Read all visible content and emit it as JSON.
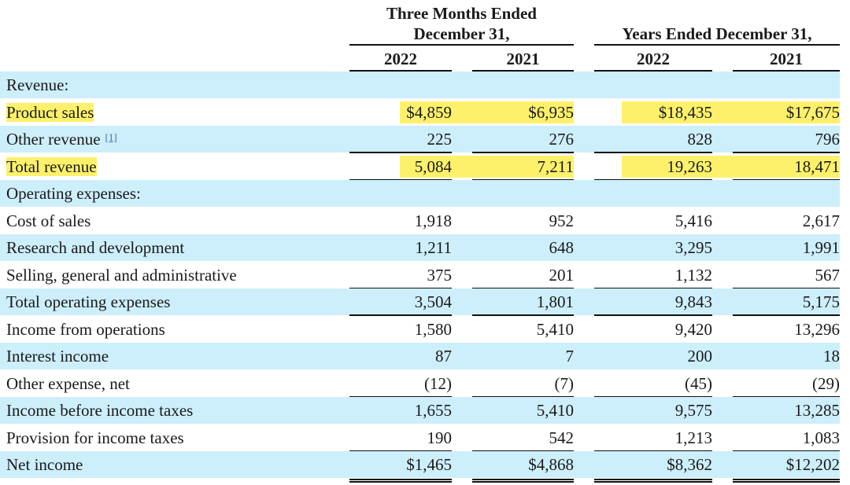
{
  "header": {
    "three_months_line1": "Three Months Ended",
    "three_months_line2": "December 31,",
    "years_ended": "Years Ended December 31,",
    "years": [
      "2022",
      "2021",
      "2022",
      "2021"
    ]
  },
  "highlight_color": "#fdf16b",
  "band_color": "#cdeefb",
  "rows": [
    {
      "label": "Revenue:",
      "values": [
        "",
        "",
        "",
        ""
      ]
    },
    {
      "label": "Product sales",
      "values": [
        "$4,859",
        "$6,935",
        "$18,435",
        "$17,675"
      ],
      "highlighted": true
    },
    {
      "label": "Other revenue",
      "footnote": "[1]",
      "values": [
        "225",
        "276",
        "828",
        "796"
      ]
    },
    {
      "label": "Total revenue",
      "values": [
        "5,084",
        "7,211",
        "19,263",
        "18,471"
      ],
      "highlighted": true
    },
    {
      "label": "Operating expenses:",
      "values": [
        "",
        "",
        "",
        ""
      ]
    },
    {
      "label": "Cost of sales",
      "values": [
        "1,918",
        "952",
        "5,416",
        "2,617"
      ]
    },
    {
      "label": "Research and development",
      "values": [
        "1,211",
        "648",
        "3,295",
        "1,991"
      ]
    },
    {
      "label": "Selling, general and administrative",
      "values": [
        "375",
        "201",
        "1,132",
        "567"
      ]
    },
    {
      "label": "Total operating expenses",
      "values": [
        "3,504",
        "1,801",
        "9,843",
        "5,175"
      ]
    },
    {
      "label": "Income from operations",
      "values": [
        "1,580",
        "5,410",
        "9,420",
        "13,296"
      ]
    },
    {
      "label": "Interest income",
      "values": [
        "87",
        "7",
        "200",
        "18"
      ]
    },
    {
      "label": "Other expense, net",
      "values": [
        "(12)",
        "(7)",
        "(45)",
        "(29)"
      ]
    },
    {
      "label": "Income before income taxes",
      "values": [
        "1,655",
        "5,410",
        "9,575",
        "13,285"
      ]
    },
    {
      "label": "Provision for income taxes",
      "values": [
        "190",
        "542",
        "1,213",
        "1,083"
      ]
    },
    {
      "label": "Net income",
      "values": [
        "$1,465",
        "$4,868",
        "$8,362",
        "$12,202"
      ]
    }
  ]
}
